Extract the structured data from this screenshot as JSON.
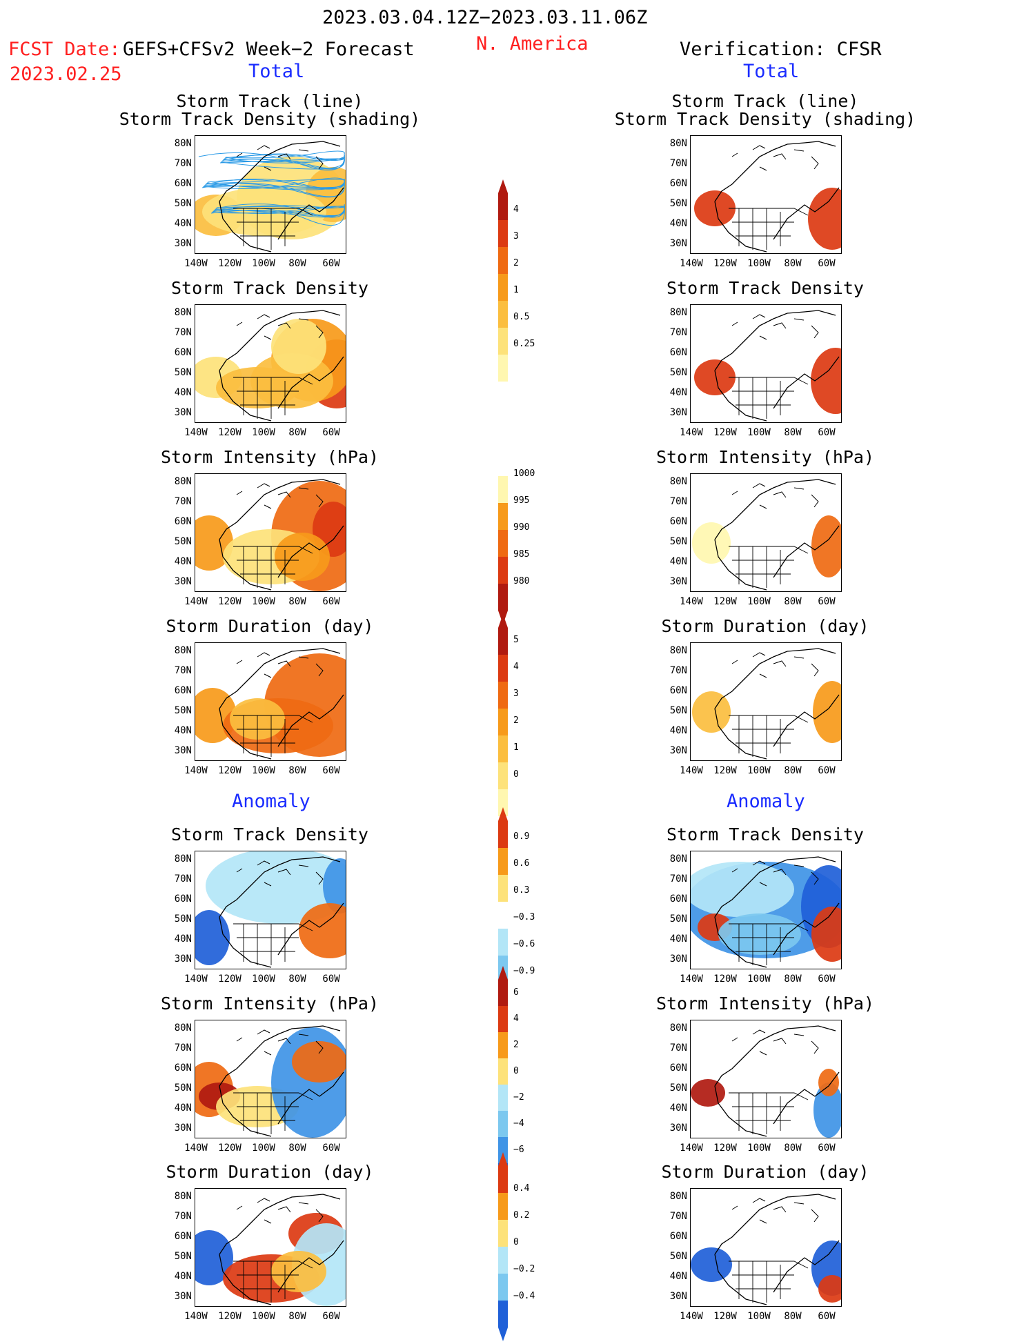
{
  "header": {
    "period": "2023.03.04.12Z−2023.03.11.06Z",
    "fcst_label": "FCST Date:",
    "model": "GEFS+CFSv2 Week−2 Forecast",
    "region": "N. America",
    "verification": "Verification: CFSR",
    "fcst_date": "2023.02.25",
    "left_total": "Total",
    "right_total": "Total",
    "left_anomaly": "Anomaly",
    "right_anomaly": "Anomaly"
  },
  "panel_titles": {
    "track_line": "Storm Track (line)",
    "track_shading": "Storm Track Density (shading)",
    "density": "Storm Track Density",
    "intensity": "Storm Intensity (hPa)",
    "duration": "Storm Duration (day)"
  },
  "axes": {
    "lat": [
      "80N",
      "70N",
      "60N",
      "50N",
      "40N",
      "30N"
    ],
    "lon": [
      "140W",
      "120W",
      "100W",
      "80W",
      "60W"
    ]
  },
  "colorbars": {
    "total_density": [
      "4",
      "3",
      "2",
      "1",
      "0.5",
      "0.25"
    ],
    "total_intensity": [
      "1000",
      "995",
      "990",
      "985",
      "980"
    ],
    "total_duration": [
      "5",
      "4",
      "3",
      "2",
      "1",
      "0"
    ],
    "anom_density": [
      "0.9",
      "0.6",
      "0.3",
      "−0.3",
      "−0.6",
      "−0.9"
    ],
    "anom_intensity": [
      "6",
      "4",
      "2",
      "0",
      "−2",
      "−4",
      "−6"
    ],
    "anom_duration": [
      "0.4",
      "0.2",
      "0",
      "−0.2",
      "−0.4"
    ]
  },
  "colors": {
    "warm": [
      "#fff7b0",
      "#fde27a",
      "#fbbe3f",
      "#f79a1a",
      "#ef6a12",
      "#dc3a12",
      "#b01a10"
    ],
    "cool": [
      "#d8f4fb",
      "#b3e6f7",
      "#7cc8ef",
      "#3f94e6",
      "#1f60d8"
    ],
    "title_red": "#ff2020",
    "title_blue": "#1a2cff"
  }
}
